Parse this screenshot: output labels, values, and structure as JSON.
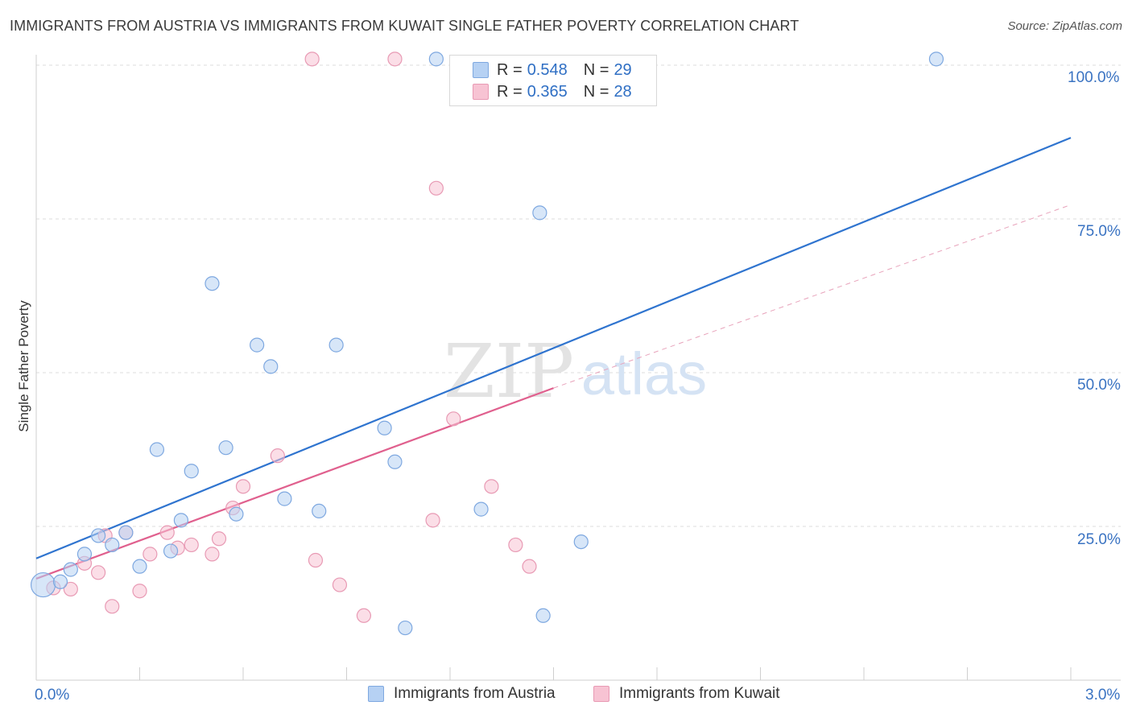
{
  "title": "IMMIGRANTS FROM AUSTRIA VS IMMIGRANTS FROM KUWAIT SINGLE FATHER POVERTY CORRELATION CHART",
  "source": "Source: ZipAtlas.com",
  "watermark": {
    "zip": "ZIP",
    "atlas": "atlas"
  },
  "legend_top": {
    "rows": [
      {
        "r_label": "R = ",
        "r_value": "0.548",
        "n_label": "N = ",
        "n_value": "29"
      },
      {
        "r_label": "R = ",
        "r_value": "0.365",
        "n_label": "N = ",
        "n_value": "28"
      }
    ]
  },
  "legend_bottom": {
    "austria": "Immigrants from Austria",
    "kuwait": "Immigrants from Kuwait"
  },
  "colors": {
    "austria_fill": "#b6d1f3",
    "austria_stroke": "#7ea8e0",
    "austria_line": "#2f74cf",
    "kuwait_fill": "#f7c3d3",
    "kuwait_stroke": "#e89ab4",
    "kuwait_line": "#e0608e"
  },
  "chart_data": {
    "type": "scatter",
    "title": "IMMIGRANTS FROM AUSTRIA VS IMMIGRANTS FROM KUWAIT SINGLE FATHER POVERTY CORRELATION CHART",
    "xlabel": "",
    "ylabel": "Single Father Poverty",
    "xlim": [
      0,
      3.0
    ],
    "ylim": [
      0,
      105
    ],
    "x_tick_labels": [
      "0.0%",
      "3.0%"
    ],
    "y_ticks": [
      25,
      50,
      75,
      100
    ],
    "y_tick_labels": [
      "25.0%",
      "50.0%",
      "75.0%",
      "100.0%"
    ],
    "series": [
      {
        "name": "Immigrants from Austria",
        "R": 0.548,
        "N": 29,
        "points": [
          {
            "x": 0.02,
            "y": 15.5,
            "big": true
          },
          {
            "x": 0.07,
            "y": 16.0
          },
          {
            "x": 0.1,
            "y": 18.0
          },
          {
            "x": 0.14,
            "y": 20.5
          },
          {
            "x": 0.18,
            "y": 23.5
          },
          {
            "x": 0.22,
            "y": 22.0
          },
          {
            "x": 0.26,
            "y": 24.0
          },
          {
            "x": 0.3,
            "y": 18.5
          },
          {
            "x": 0.35,
            "y": 37.5
          },
          {
            "x": 0.39,
            "y": 21.0
          },
          {
            "x": 0.42,
            "y": 26.0
          },
          {
            "x": 0.45,
            "y": 34.0
          },
          {
            "x": 0.51,
            "y": 64.5
          },
          {
            "x": 0.55,
            "y": 37.8
          },
          {
            "x": 0.58,
            "y": 27.0
          },
          {
            "x": 0.64,
            "y": 54.5
          },
          {
            "x": 0.68,
            "y": 51.0
          },
          {
            "x": 0.72,
            "y": 29.5
          },
          {
            "x": 0.82,
            "y": 27.5
          },
          {
            "x": 0.87,
            "y": 54.5
          },
          {
            "x": 1.01,
            "y": 41.0
          },
          {
            "x": 1.04,
            "y": 35.5
          },
          {
            "x": 1.07,
            "y": 8.5
          },
          {
            "x": 1.16,
            "y": 101.0
          },
          {
            "x": 1.29,
            "y": 27.8
          },
          {
            "x": 1.46,
            "y": 76.0
          },
          {
            "x": 1.47,
            "y": 10.5
          },
          {
            "x": 1.58,
            "y": 22.5
          },
          {
            "x": 2.61,
            "y": 101.0
          }
        ],
        "trend": {
          "x0": 0.0,
          "y0": 19.8,
          "x1": 3.0,
          "y1": 88.2
        }
      },
      {
        "name": "Immigrants from Kuwait",
        "R": 0.365,
        "N": 28,
        "points": [
          {
            "x": 0.05,
            "y": 15.0
          },
          {
            "x": 0.1,
            "y": 14.8
          },
          {
            "x": 0.14,
            "y": 19.0
          },
          {
            "x": 0.18,
            "y": 17.5
          },
          {
            "x": 0.22,
            "y": 12.0
          },
          {
            "x": 0.26,
            "y": 24.0
          },
          {
            "x": 0.3,
            "y": 14.5
          },
          {
            "x": 0.33,
            "y": 20.5
          },
          {
            "x": 0.38,
            "y": 24.0
          },
          {
            "x": 0.41,
            "y": 21.5
          },
          {
            "x": 0.45,
            "y": 22.0
          },
          {
            "x": 0.51,
            "y": 20.5
          },
          {
            "x": 0.53,
            "y": 23.0
          },
          {
            "x": 0.57,
            "y": 28.0
          },
          {
            "x": 0.6,
            "y": 31.5
          },
          {
            "x": 0.7,
            "y": 36.5
          },
          {
            "x": 0.8,
            "y": 101.0
          },
          {
            "x": 0.81,
            "y": 19.5
          },
          {
            "x": 0.88,
            "y": 15.5
          },
          {
            "x": 0.95,
            "y": 10.5
          },
          {
            "x": 1.04,
            "y": 101.0
          },
          {
            "x": 1.15,
            "y": 26.0
          },
          {
            "x": 1.16,
            "y": 80.0
          },
          {
            "x": 1.21,
            "y": 42.5
          },
          {
            "x": 1.32,
            "y": 31.5
          },
          {
            "x": 1.39,
            "y": 22.0
          },
          {
            "x": 1.43,
            "y": 18.5
          },
          {
            "x": 0.2,
            "y": 23.5
          }
        ],
        "trend": {
          "x0": 0.0,
          "y0": 16.5,
          "x1": 1.5,
          "y1": 47.5
        },
        "trend_dashed": {
          "x0": 1.5,
          "y0": 47.5,
          "x1": 3.0,
          "y1": 77.3
        }
      }
    ]
  }
}
